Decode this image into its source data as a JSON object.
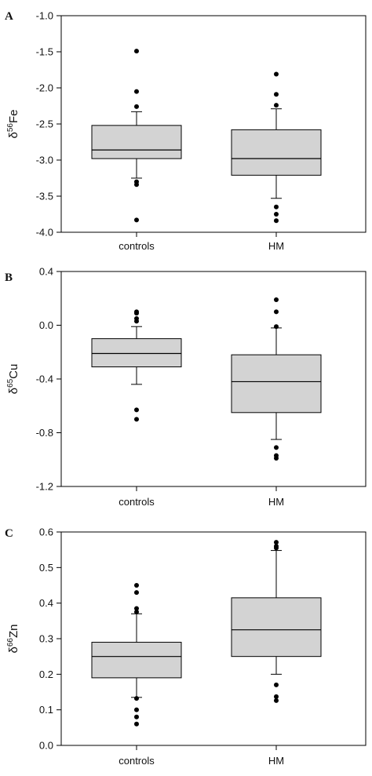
{
  "chart_data": [
    {
      "panel": "A",
      "type": "box",
      "ylabel_base": "δ",
      "ylabel_sup": "56",
      "ylabel_elem": "Fe",
      "ylim": [
        -4.0,
        -1.0
      ],
      "yticks": [
        -4.0,
        -3.5,
        -3.0,
        -2.5,
        -2.0,
        -1.5,
        -1.0
      ],
      "ytick_labels": [
        "-4.0",
        "-3.5",
        "-3.0",
        "-2.5",
        "-2.0",
        "-1.5",
        "-1.0"
      ],
      "categories": [
        "controls",
        "HM"
      ],
      "boxes": [
        {
          "q1": -2.98,
          "median": -2.86,
          "q3": -2.52,
          "whisker_low": -3.25,
          "whisker_high": -2.33,
          "outliers": [
            -1.49,
            -2.05,
            -2.26,
            -3.3,
            -3.34,
            -3.83
          ]
        },
        {
          "q1": -3.21,
          "median": -2.98,
          "q3": -2.58,
          "whisker_low": -3.53,
          "whisker_high": -2.29,
          "outliers": [
            -1.81,
            -2.09,
            -2.24,
            -3.65,
            -3.75,
            -3.84
          ]
        }
      ],
      "grid": false,
      "colors": {
        "box_fill": "#d3d3d3",
        "line": "#000000",
        "outlier": "#000000"
      }
    },
    {
      "panel": "B",
      "type": "box",
      "ylabel_base": "δ",
      "ylabel_sup": "65",
      "ylabel_elem": "Cu",
      "ylim": [
        -1.2,
        0.4
      ],
      "yticks": [
        -1.2,
        -0.8,
        -0.4,
        0.0,
        0.4
      ],
      "ytick_labels": [
        "-1.2",
        "-0.8",
        "-0.4",
        "0.0",
        "0.4"
      ],
      "categories": [
        "controls",
        "HM"
      ],
      "boxes": [
        {
          "q1": -0.31,
          "median": -0.21,
          "q3": -0.1,
          "whisker_low": -0.44,
          "whisker_high": -0.01,
          "outliers": [
            0.1,
            0.09,
            0.05,
            0.03,
            -0.63,
            -0.7
          ]
        },
        {
          "q1": -0.65,
          "median": -0.42,
          "q3": -0.22,
          "whisker_low": -0.85,
          "whisker_high": -0.02,
          "outliers": [
            0.19,
            0.1,
            -0.01,
            -0.91,
            -0.97,
            -0.99
          ]
        }
      ],
      "grid": false,
      "colors": {
        "box_fill": "#d3d3d3",
        "line": "#000000",
        "outlier": "#000000"
      }
    },
    {
      "panel": "C",
      "type": "box",
      "ylabel_base": "δ",
      "ylabel_sup": "66",
      "ylabel_elem": "Zn",
      "ylim": [
        0.0,
        0.6
      ],
      "yticks": [
        0.0,
        0.1,
        0.2,
        0.3,
        0.4,
        0.5,
        0.6
      ],
      "ytick_labels": [
        "0.0",
        "0.1",
        "0.2",
        "0.3",
        "0.4",
        "0.5",
        "0.6"
      ],
      "categories": [
        "controls",
        "HM"
      ],
      "boxes": [
        {
          "q1": 0.19,
          "median": 0.25,
          "q3": 0.29,
          "whisker_low": 0.135,
          "whisker_high": 0.37,
          "outliers": [
            0.45,
            0.43,
            0.385,
            0.375,
            0.132,
            0.1,
            0.08,
            0.06
          ]
        },
        {
          "q1": 0.25,
          "median": 0.325,
          "q3": 0.415,
          "whisker_low": 0.2,
          "whisker_high": 0.548,
          "outliers": [
            0.571,
            0.56,
            0.555,
            0.17,
            0.137,
            0.126
          ]
        }
      ],
      "grid": false,
      "colors": {
        "box_fill": "#d3d3d3",
        "line": "#000000",
        "outlier": "#000000"
      }
    }
  ]
}
